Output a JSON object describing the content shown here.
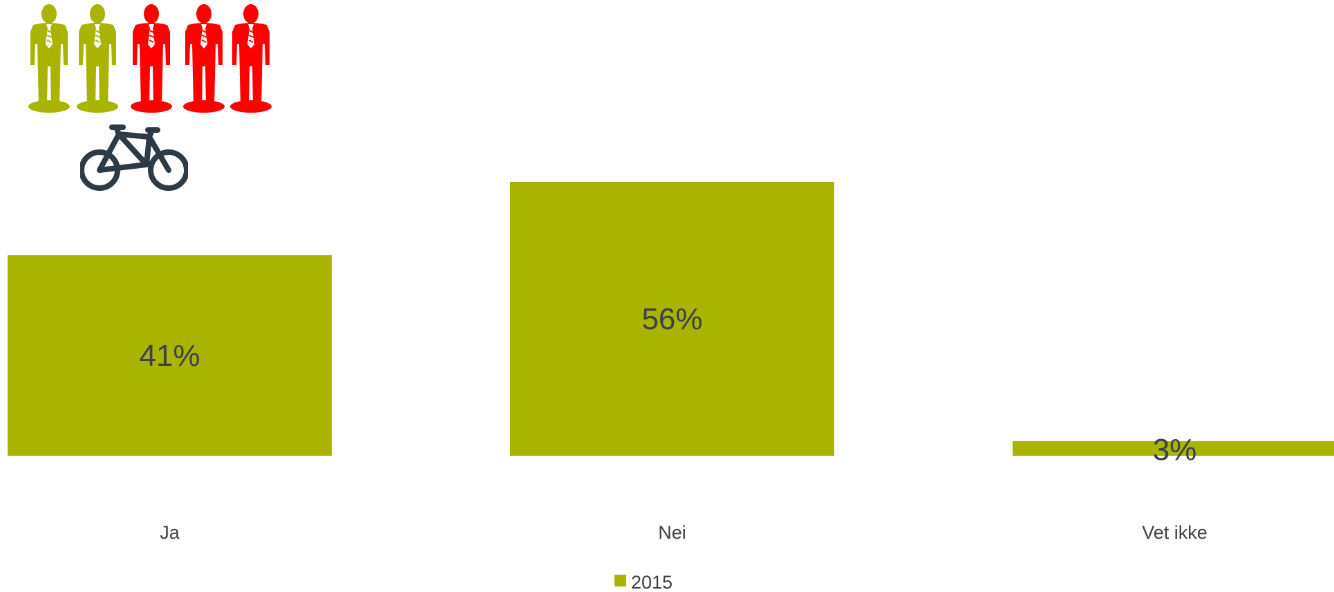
{
  "chart_data": {
    "type": "bar",
    "categories": [
      "Ja",
      "Nei",
      "Vet ikke"
    ],
    "series": [
      {
        "name": "2015",
        "values": [
          41,
          56,
          3
        ]
      }
    ],
    "value_labels": [
      "41%",
      "56%",
      "3%"
    ],
    "ylim": [
      0,
      100
    ],
    "grid": false,
    "legend": "bottom",
    "colors": {
      "bar": "#a8b400",
      "label": "#3d4148",
      "axis_text": "#404040"
    }
  },
  "icons": {
    "people": "people-icon",
    "bicycle": "bicycle-icon",
    "people_colors": [
      "#a8b400",
      "#a8b400",
      "#ff0000",
      "#ff0000",
      "#ff0000"
    ],
    "bicycle_color": "#2e3a46"
  }
}
